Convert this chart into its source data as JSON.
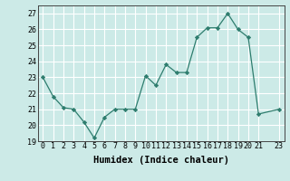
{
  "x": [
    0,
    1,
    2,
    3,
    4,
    5,
    6,
    7,
    8,
    9,
    10,
    11,
    12,
    13,
    14,
    15,
    16,
    17,
    18,
    19,
    20,
    21,
    23
  ],
  "y": [
    23,
    21.8,
    21.1,
    21.0,
    20.2,
    19.2,
    20.5,
    21.0,
    21.0,
    21.0,
    23.1,
    22.5,
    23.8,
    23.3,
    23.3,
    25.5,
    26.1,
    26.1,
    27.0,
    26.0,
    25.5,
    20.7,
    21.0
  ],
  "line_color": "#2e7d6e",
  "marker": "D",
  "marker_size": 2.2,
  "bg_color": "#cceae7",
  "grid_color": "#ffffff",
  "xlabel": "Humidex (Indice chaleur)",
  "xlim": [
    -0.5,
    23.5
  ],
  "ylim": [
    19,
    27.5
  ],
  "yticks": [
    19,
    20,
    21,
    22,
    23,
    24,
    25,
    26,
    27
  ],
  "xticks": [
    0,
    1,
    2,
    3,
    4,
    5,
    6,
    7,
    8,
    9,
    10,
    11,
    12,
    13,
    14,
    15,
    16,
    17,
    18,
    19,
    20,
    21,
    23
  ],
  "xlabel_fontsize": 7.5,
  "tick_fontsize": 6.0
}
